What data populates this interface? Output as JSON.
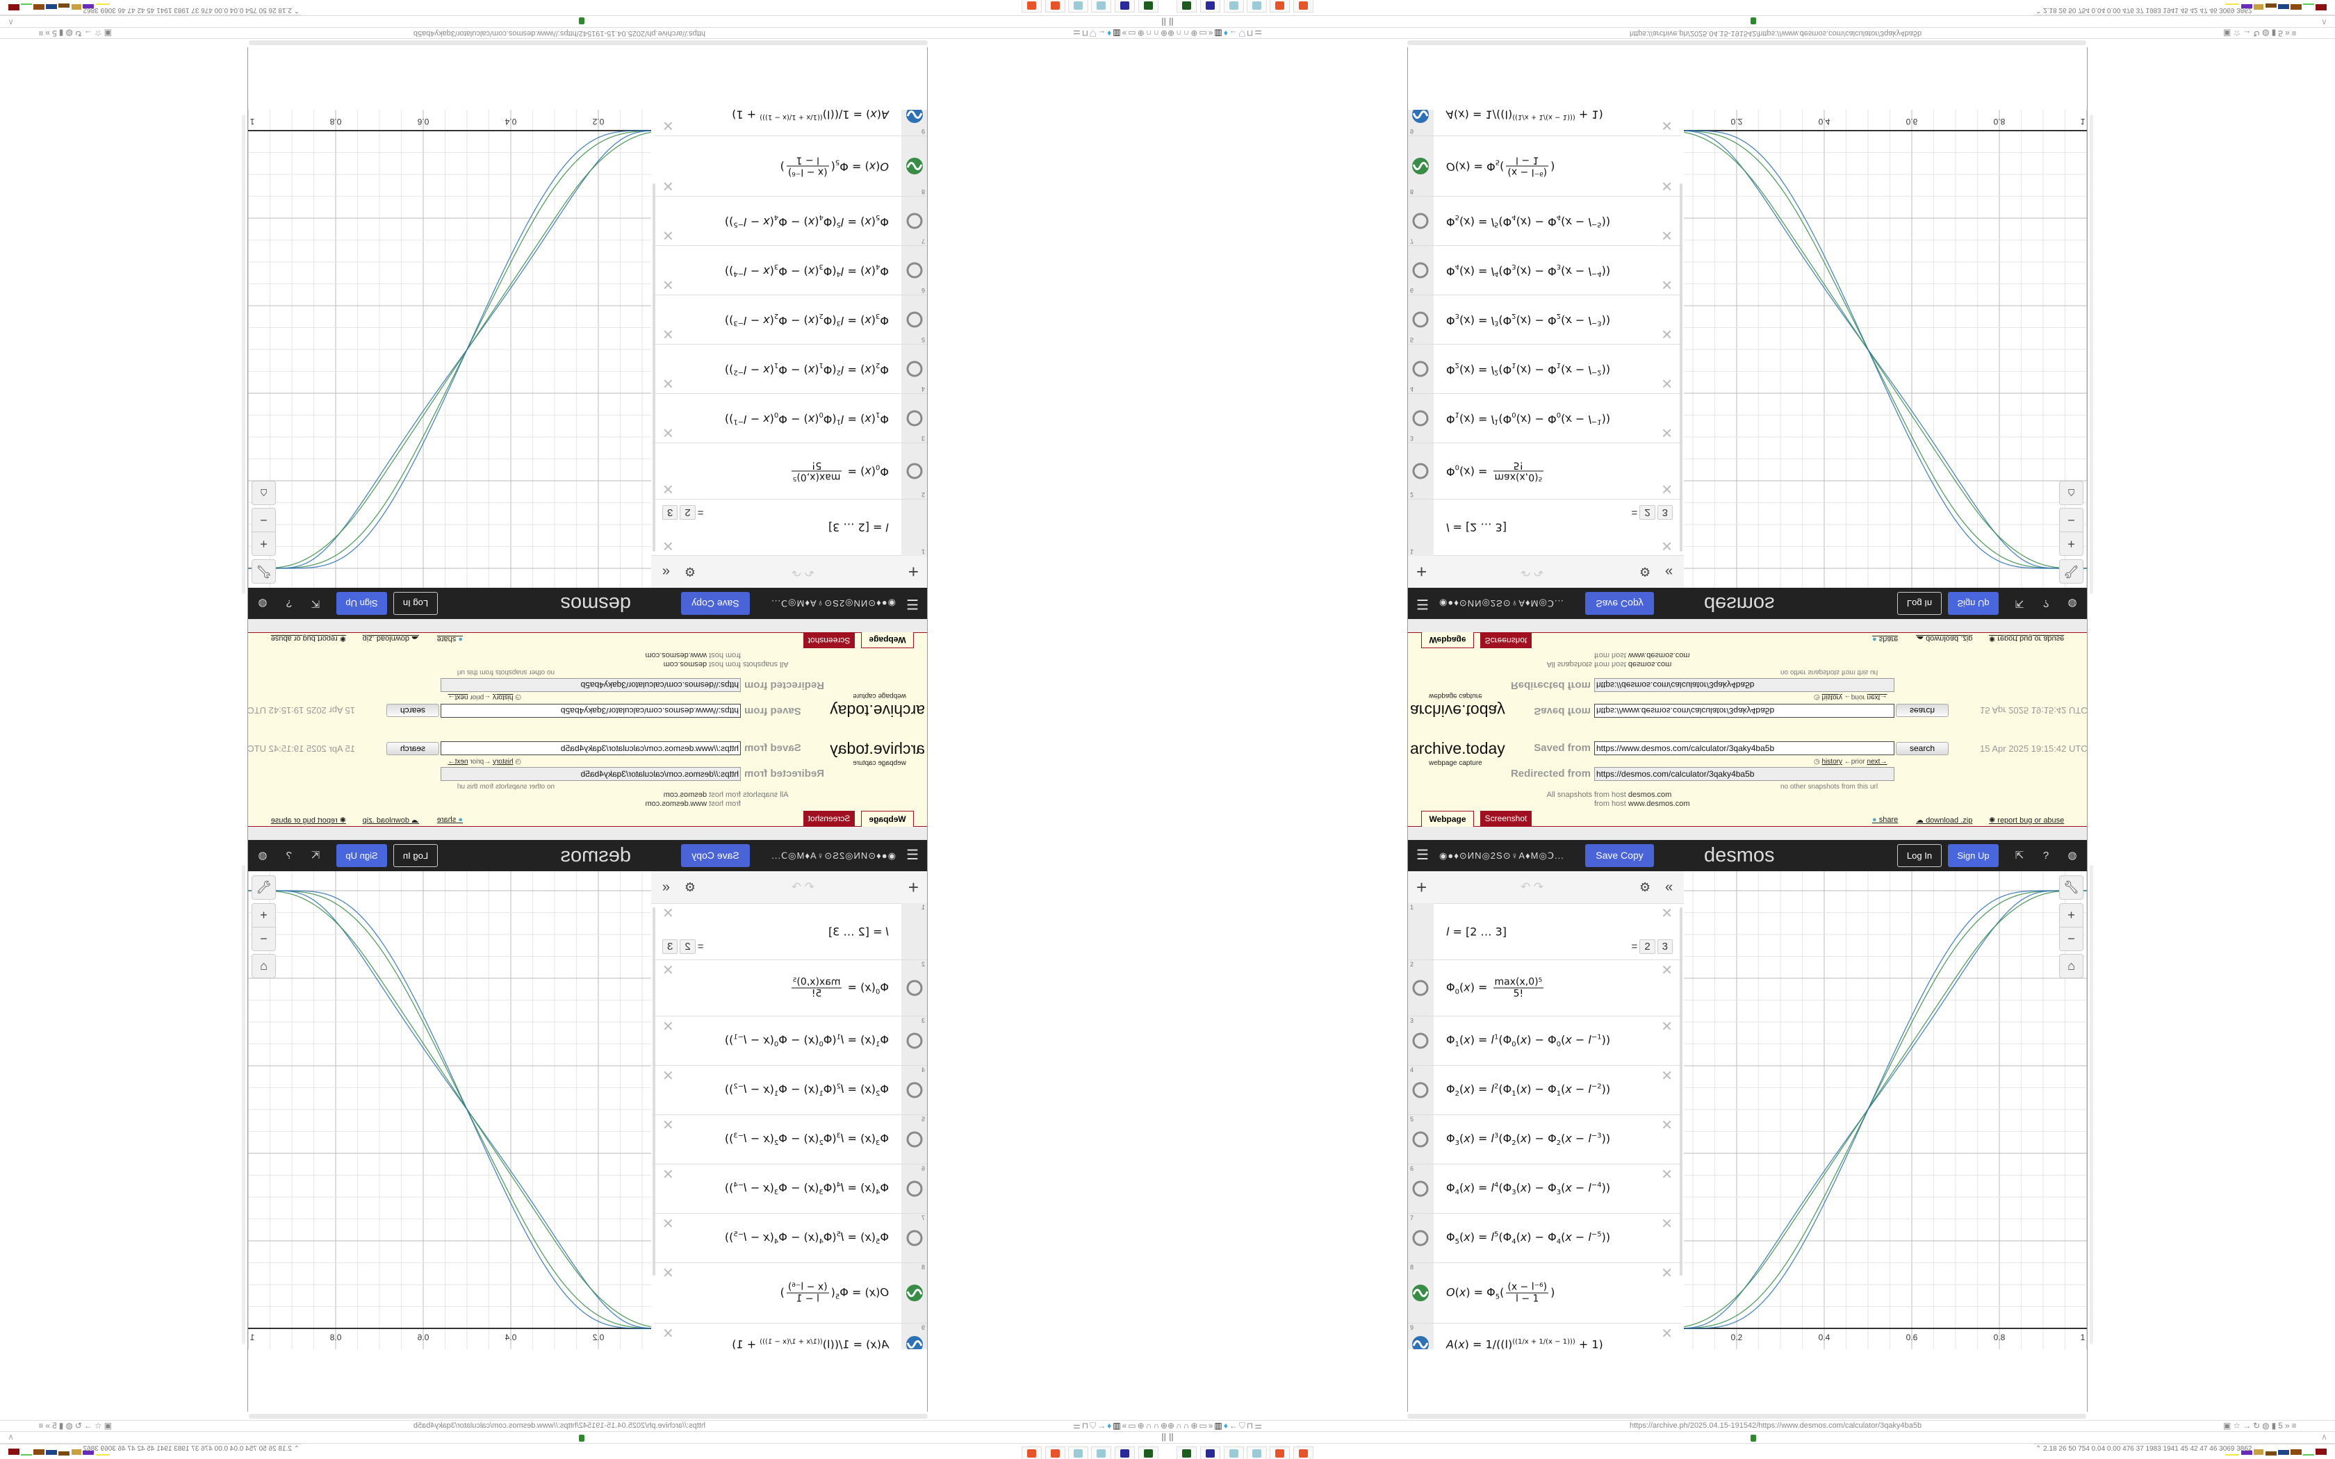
{
  "browser": {
    "url": "https://archive.ph/2025.04.15-191542/https://www.desmos.com/calculator/3qaky4ba5b",
    "left_icons": [
      "globe-icon",
      "headphones-icon",
      "headphones-icon",
      "globe-icon",
      "folder-icon",
      "double-chevron-icon",
      "trash-icon",
      "figure-icon",
      "back-arrow-icon",
      "shield-icon",
      "lock-icon",
      "sliders-icon"
    ],
    "right_icons": [
      "translate-icon",
      "star-icon",
      "forward-icon",
      "reload-icon",
      "globe-icon",
      "extension-icon",
      "counter-icon",
      "overflow-icon",
      "menu-icon"
    ],
    "pause_label": "||",
    "taskbar": [
      "terminal",
      "floppy-64",
      "notepad",
      "notepad",
      "firefox",
      "firefox"
    ],
    "stats": "2.18  26  50  754 0.04 0.00 476  37  1983 1941  45  42  47  46  3069 3862"
  },
  "archive": {
    "logo": "archive.today",
    "tagline": "webpage capture",
    "saved_label": "Saved from",
    "saved_url": "https://www.desmos.com/calculator/3qaky4ba5b",
    "search_label": "search",
    "date": "15 Apr 2025 19:15:42 UTC",
    "history": "history",
    "prior": "←prior",
    "next": "next→",
    "redirected_label": "Redirected from",
    "redirected_url": "https://desmos.com/calculator/3qaky4ba5b",
    "no_other": "no other snapshots from this url",
    "all_label": "All snapshots",
    "from_host": "from host",
    "host1": "desmos.com",
    "host2": "www.desmos.com",
    "tabs": [
      "Webpage",
      "Screenshot"
    ],
    "share": "share",
    "download": "download .zip",
    "report": "report bug or abuse"
  },
  "desmos": {
    "title": "◉●♦⊙ИN◎2S⊙♀A♦M◎Ↄ...",
    "save_copy": "Save Copy",
    "logo": "desmos",
    "log_in": "Log In",
    "sign_up": "Sign Up"
  },
  "expressions": [
    {
      "num": "1",
      "icon": "none",
      "parts": [
        [
          "i",
          "l"
        ],
        [
          "t",
          " = [2 … 3]"
        ]
      ],
      "result_eq": "=",
      "result": [
        "2",
        "3"
      ]
    },
    {
      "num": "2",
      "icon": "hidden",
      "parts": [
        [
          "t",
          "Φ"
        ],
        [
          "b",
          "0"
        ],
        [
          "t",
          "("
        ],
        [
          "i",
          "x"
        ],
        [
          "t",
          ") = "
        ],
        [
          "f",
          "max(x,0)⁵",
          "5!"
        ]
      ]
    },
    {
      "num": "3",
      "icon": "hidden",
      "parts": [
        [
          "t",
          "Φ"
        ],
        [
          "b",
          "1"
        ],
        [
          "t",
          "("
        ],
        [
          "i",
          "x"
        ],
        [
          "t",
          ") = "
        ],
        [
          "i",
          "l"
        ],
        [
          "p",
          "1"
        ],
        [
          "t",
          "(Φ"
        ],
        [
          "b",
          "0"
        ],
        [
          "t",
          "("
        ],
        [
          "i",
          "x"
        ],
        [
          "t",
          ") − Φ"
        ],
        [
          "b",
          "0"
        ],
        [
          "t",
          "("
        ],
        [
          "i",
          "x"
        ],
        [
          "t",
          " − "
        ],
        [
          "i",
          "l"
        ],
        [
          "p",
          "−1"
        ],
        [
          "t",
          "))"
        ]
      ]
    },
    {
      "num": "4",
      "icon": "hidden",
      "parts": [
        [
          "t",
          "Φ"
        ],
        [
          "b",
          "2"
        ],
        [
          "t",
          "("
        ],
        [
          "i",
          "x"
        ],
        [
          "t",
          ") = "
        ],
        [
          "i",
          "l"
        ],
        [
          "p",
          "2"
        ],
        [
          "t",
          "(Φ"
        ],
        [
          "b",
          "1"
        ],
        [
          "t",
          "("
        ],
        [
          "i",
          "x"
        ],
        [
          "t",
          ") − Φ"
        ],
        [
          "b",
          "1"
        ],
        [
          "t",
          "("
        ],
        [
          "i",
          "x"
        ],
        [
          "t",
          " − "
        ],
        [
          "i",
          "l"
        ],
        [
          "p",
          "−2"
        ],
        [
          "t",
          "))"
        ]
      ]
    },
    {
      "num": "5",
      "icon": "hidden",
      "parts": [
        [
          "t",
          "Φ"
        ],
        [
          "b",
          "3"
        ],
        [
          "t",
          "("
        ],
        [
          "i",
          "x"
        ],
        [
          "t",
          ") = "
        ],
        [
          "i",
          "l"
        ],
        [
          "p",
          "3"
        ],
        [
          "t",
          "(Φ"
        ],
        [
          "b",
          "2"
        ],
        [
          "t",
          "("
        ],
        [
          "i",
          "x"
        ],
        [
          "t",
          ") − Φ"
        ],
        [
          "b",
          "2"
        ],
        [
          "t",
          "("
        ],
        [
          "i",
          "x"
        ],
        [
          "t",
          " − "
        ],
        [
          "i",
          "l"
        ],
        [
          "p",
          "−3"
        ],
        [
          "t",
          "))"
        ]
      ]
    },
    {
      "num": "6",
      "icon": "hidden",
      "parts": [
        [
          "t",
          "Φ"
        ],
        [
          "b",
          "4"
        ],
        [
          "t",
          "("
        ],
        [
          "i",
          "x"
        ],
        [
          "t",
          ") = "
        ],
        [
          "i",
          "l"
        ],
        [
          "p",
          "4"
        ],
        [
          "t",
          "(Φ"
        ],
        [
          "b",
          "3"
        ],
        [
          "t",
          "("
        ],
        [
          "i",
          "x"
        ],
        [
          "t",
          ") − Φ"
        ],
        [
          "b",
          "3"
        ],
        [
          "t",
          "("
        ],
        [
          "i",
          "x"
        ],
        [
          "t",
          " − "
        ],
        [
          "i",
          "l"
        ],
        [
          "p",
          "−4"
        ],
        [
          "t",
          "))"
        ]
      ]
    },
    {
      "num": "7",
      "icon": "hidden",
      "parts": [
        [
          "t",
          "Φ"
        ],
        [
          "b",
          "5"
        ],
        [
          "t",
          "("
        ],
        [
          "i",
          "x"
        ],
        [
          "t",
          ") = "
        ],
        [
          "i",
          "l"
        ],
        [
          "p",
          "5"
        ],
        [
          "t",
          "(Φ"
        ],
        [
          "b",
          "4"
        ],
        [
          "t",
          "("
        ],
        [
          "i",
          "x"
        ],
        [
          "t",
          ") − Φ"
        ],
        [
          "b",
          "4"
        ],
        [
          "t",
          "("
        ],
        [
          "i",
          "x"
        ],
        [
          "t",
          " − "
        ],
        [
          "i",
          "l"
        ],
        [
          "p",
          "−5"
        ],
        [
          "t",
          "))"
        ]
      ]
    },
    {
      "num": "8",
      "icon": "wave-green",
      "parts": [
        [
          "i",
          "O"
        ],
        [
          "t",
          "("
        ],
        [
          "i",
          "x"
        ],
        [
          "t",
          ") = Φ"
        ],
        [
          "b",
          "5"
        ],
        [
          "t",
          "("
        ],
        [
          "f",
          "(x − l⁻⁶)",
          "l − 1"
        ],
        [
          "t",
          ")"
        ]
      ]
    },
    {
      "num": "9",
      "icon": "wave-blue",
      "parts": [
        [
          "i",
          "A"
        ],
        [
          "t",
          "("
        ],
        [
          "i",
          "x"
        ],
        [
          "t",
          ") = 1/((l)"
        ],
        [
          "p",
          "((1/x + 1/(x − 1)))"
        ],
        [
          "t",
          " + 1)"
        ]
      ]
    }
  ],
  "graph": {
    "x_ticks": [
      "0.2",
      "0.4",
      "0.6",
      "0.8",
      "1"
    ],
    "x_tick_values": [
      0.2,
      0.4,
      0.6,
      0.8,
      1
    ],
    "l_values": [
      2,
      3
    ],
    "colors": {
      "O": "#388c46",
      "A": "#2d70b3",
      "axis": "#333333",
      "grid_major": "#bbbbbb",
      "grid_minor": "#e6e6e6"
    },
    "tools": [
      "wrench-icon",
      "zoom-in-icon",
      "zoom-out-icon",
      "home-icon"
    ]
  }
}
